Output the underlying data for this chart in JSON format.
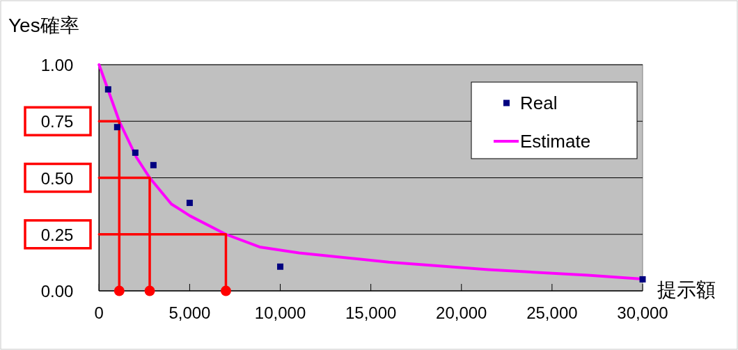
{
  "chart_data": {
    "type": "scatter",
    "xlabel": "提示額",
    "ylabel": "Yes確率",
    "xlim": [
      0,
      30000
    ],
    "ylim": [
      0,
      1
    ],
    "xticks": [
      0,
      {
        "value": 5000,
        "label": "5,000"
      },
      {
        "value": 10000,
        "label": "10,000"
      },
      {
        "value": 15000,
        "label": "15,000"
      },
      {
        "value": 20000,
        "label": "20,000"
      },
      {
        "value": 25000,
        "label": "25,000"
      },
      {
        "value": 30000,
        "label": "30,000"
      }
    ],
    "yticks": [
      {
        "value": 0,
        "label": "0.00"
      },
      {
        "value": 0.25,
        "label": "0.25"
      },
      {
        "value": 0.5,
        "label": "0.50"
      },
      {
        "value": 0.75,
        "label": "0.75"
      },
      {
        "value": 1,
        "label": "1.00"
      }
    ],
    "grid": "y",
    "legend": "top right",
    "series": [
      {
        "name": "Estimate",
        "type": "line",
        "color": "#ff00ff",
        "x": [
          0,
          1115,
          2065,
          2795,
          3990,
          5010,
          7000,
          8860,
          11040,
          15990,
          21480,
          26970,
          30000
        ],
        "values": [
          1.0,
          0.75,
          0.59,
          0.5,
          0.384,
          0.332,
          0.25,
          0.194,
          0.168,
          0.127,
          0.094,
          0.069,
          0.052
        ]
      },
      {
        "type": "line",
        "color": "#ff0000",
        "x": [
          0,
          1115,
          1115
        ],
        "values": [
          0.75,
          0.75,
          0
        ]
      },
      {
        "type": "line",
        "color": "#ff0000",
        "x": [
          0,
          2795,
          2795
        ],
        "values": [
          0.5,
          0.5,
          0
        ]
      },
      {
        "type": "line",
        "color": "#ff0000",
        "x": [
          0,
          7000,
          7000
        ],
        "values": [
          0.25,
          0.25,
          0
        ]
      },
      {
        "color": "#ff0000",
        "marker": "circle",
        "x": [
          1115,
          2795,
          7000
        ],
        "values": [
          0,
          0,
          0
        ]
      },
      {
        "name": "Real",
        "color": "#000080",
        "marker": "square",
        "x": [
          500,
          1000,
          2000,
          3000,
          5000,
          10000,
          30000
        ],
        "values": [
          0.891,
          0.724,
          0.611,
          0.556,
          0.389,
          0.107,
          0.051
        ]
      }
    ]
  }
}
